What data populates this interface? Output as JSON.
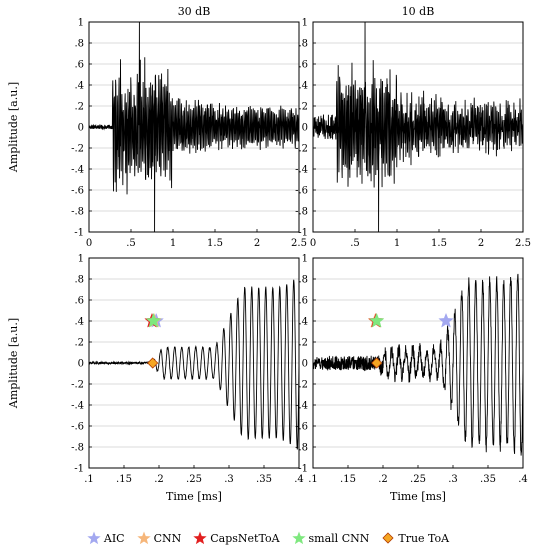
{
  "chart_data": [
    {
      "type": "line",
      "title": "30 dB",
      "xlabel": "",
      "ylabel": "Amplitude [a.u.]",
      "xlim": [
        0,
        2.5
      ],
      "ylim": [
        -1,
        1
      ],
      "xticks": [
        0,
        0.5,
        1,
        1.5,
        2,
        2.5
      ],
      "yticks": [
        -1,
        -0.8,
        -0.6,
        -0.4,
        -0.2,
        0,
        0.2,
        0.4,
        0.6,
        0.8,
        1
      ],
      "grid": "horizontal",
      "series": [
        {
          "signal": {
            "noise_amplitude": 0.02,
            "onset_ms": 0.28,
            "peak_amplitude": 0.7,
            "max_positive": 1.0,
            "max_positive_at_ms": 0.6,
            "min_negative": -1.0,
            "min_negative_at_ms": 0.78,
            "decay_end_ms": 2.5,
            "late_amplitude": 0.2
          }
        }
      ]
    },
    {
      "type": "line",
      "title": "10 dB",
      "xlabel": "",
      "ylabel": "",
      "xlim": [
        0,
        2.5
      ],
      "ylim": [
        -1,
        1
      ],
      "xticks": [
        0,
        0.5,
        1,
        1.5,
        2,
        2.5
      ],
      "yticks": [
        -1,
        -0.8,
        -0.6,
        -0.4,
        -0.2,
        0,
        0.2,
        0.4,
        0.6,
        0.8,
        1
      ],
      "grid": "horizontal",
      "series": [
        {
          "signal": {
            "noise_amplitude": 0.12,
            "onset_ms": 0.28,
            "peak_amplitude": 0.7,
            "max_positive": 1.0,
            "max_positive_at_ms": 0.62,
            "min_negative": -1.0,
            "min_negative_at_ms": 0.78,
            "decay_end_ms": 2.5,
            "late_amplitude": 0.2
          }
        }
      ]
    },
    {
      "type": "line",
      "title": "",
      "xlabel": "Time [ms]",
      "ylabel": "Amplitude [a.u.]",
      "xlim": [
        0.1,
        0.4
      ],
      "ylim": [
        -1,
        1
      ],
      "xticks": [
        0.1,
        0.15,
        0.2,
        0.25,
        0.3,
        0.35,
        0.4
      ],
      "yticks": [
        -1,
        -0.8,
        -0.6,
        -0.4,
        -0.2,
        0,
        0.2,
        0.4,
        0.6,
        0.8,
        1
      ],
      "grid": "horizontal",
      "series": [
        {
          "signal": {
            "noise_amplitude": 0.01,
            "onset_ms": 0.19,
            "early_amplitude": 0.15,
            "main_onset_ms": 0.28,
            "peak_amplitude": 0.72,
            "period_ms": 0.01
          }
        }
      ],
      "markers": [
        {
          "name": "AIC",
          "x": 0.196,
          "y": 0.4,
          "color": "#a3a8f0",
          "shape": "star"
        },
        {
          "name": "CNN",
          "x": 0.193,
          "y": 0.4,
          "color": "#f6b67a",
          "shape": "star"
        },
        {
          "name": "CapsNetToA",
          "x": 0.19,
          "y": 0.4,
          "color": "#e21f1f",
          "shape": "star"
        },
        {
          "name": "small CNN",
          "x": 0.192,
          "y": 0.4,
          "color": "#7fe87f",
          "shape": "star"
        },
        {
          "name": "True ToA",
          "x": 0.191,
          "y": 0.0,
          "color": "#f5a623",
          "shape": "diamond"
        }
      ]
    },
    {
      "type": "line",
      "title": "",
      "xlabel": "Time [ms]",
      "ylabel": "",
      "xlim": [
        0.1,
        0.4
      ],
      "ylim": [
        -1,
        1
      ],
      "xticks": [
        0.1,
        0.15,
        0.2,
        0.25,
        0.3,
        0.35,
        0.4
      ],
      "yticks": [
        -1,
        -0.8,
        -0.6,
        -0.4,
        -0.2,
        0,
        0.2,
        0.4,
        0.6,
        0.8,
        1
      ],
      "grid": "horizontal",
      "series": [
        {
          "signal": {
            "noise_amplitude": 0.07,
            "onset_ms": 0.19,
            "early_amplitude": 0.12,
            "main_onset_ms": 0.28,
            "peak_amplitude": 0.78,
            "period_ms": 0.01
          }
        }
      ],
      "markers": [
        {
          "name": "AIC",
          "x": 0.29,
          "y": 0.4,
          "color": "#a3a8f0",
          "shape": "star"
        },
        {
          "name": "CNN",
          "x": 0.189,
          "y": 0.4,
          "color": "#f6b67a",
          "shape": "star"
        },
        {
          "name": "CapsNetToA",
          "x": 0.19,
          "y": 0.4,
          "color": "#e21f1f",
          "shape": "star"
        },
        {
          "name": "small CNN",
          "x": 0.191,
          "y": 0.4,
          "color": "#7fe87f",
          "shape": "star"
        },
        {
          "name": "True ToA",
          "x": 0.191,
          "y": 0.0,
          "color": "#f5a623",
          "shape": "diamond"
        }
      ]
    }
  ],
  "legend": [
    {
      "label": "AIC",
      "color": "#a3a8f0",
      "shape": "star"
    },
    {
      "label": "CNN",
      "color": "#f6b67a",
      "shape": "star"
    },
    {
      "label": "CapsNetToA",
      "color": "#e21f1f",
      "shape": "star"
    },
    {
      "label": "small CNN",
      "color": "#7fe87f",
      "shape": "star"
    },
    {
      "label": "True ToA",
      "color": "#f5a623",
      "shape": "diamond"
    }
  ]
}
